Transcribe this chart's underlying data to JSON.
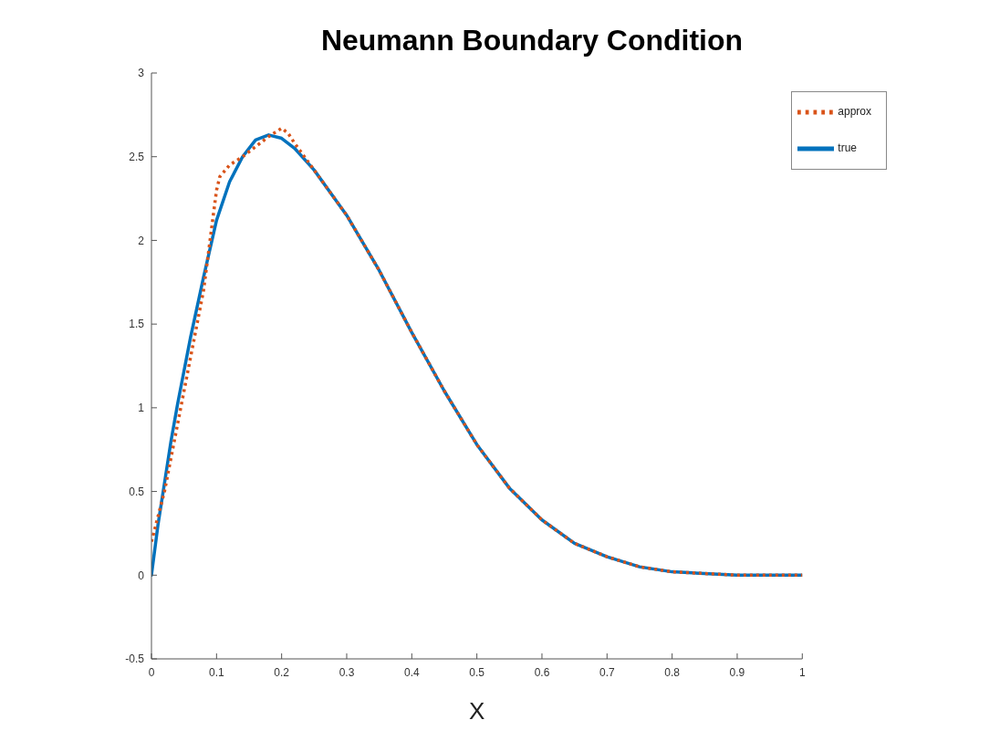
{
  "chart_data": {
    "type": "line",
    "title": "Neumann Boundary Condition",
    "xlabel": "X",
    "xlim": [
      0,
      1
    ],
    "xticks": [
      0,
      0.1,
      0.2,
      0.3,
      0.4,
      0.5,
      0.6,
      0.7,
      0.8,
      0.9,
      1
    ],
    "ylim": [
      -0.5,
      3
    ],
    "yticks": [
      -0.5,
      0,
      0.5,
      1,
      1.5,
      2,
      2.5,
      3
    ],
    "grid": false,
    "legend": "top right",
    "marker": "none",
    "series": [
      {
        "name": "true",
        "color": "#0072bd",
        "line_style": "solid",
        "x": [
          0,
          0.01,
          0.02,
          0.03,
          0.04,
          0.05,
          0.06,
          0.08,
          0.1,
          0.12,
          0.14,
          0.16,
          0.18,
          0.2,
          0.22,
          0.25,
          0.3,
          0.35,
          0.4,
          0.45,
          0.5,
          0.55,
          0.6,
          0.65,
          0.7,
          0.75,
          0.8,
          0.85,
          0.9,
          0.95,
          1
        ],
        "values": [
          0,
          0.3,
          0.55,
          0.8,
          1.02,
          1.22,
          1.42,
          1.78,
          2.12,
          2.35,
          2.5,
          2.6,
          2.63,
          2.61,
          2.55,
          2.42,
          2.15,
          1.82,
          1.45,
          1.1,
          0.78,
          0.52,
          0.33,
          0.19,
          0.11,
          0.05,
          0.02,
          0.01,
          0,
          0,
          0
        ]
      },
      {
        "name": "approx",
        "color": "#d95319",
        "line_style": "dotted",
        "x": [
          0,
          0.01,
          0.02,
          0.03,
          0.04,
          0.05,
          0.06,
          0.08,
          0.1,
          0.105,
          0.12,
          0.14,
          0.16,
          0.18,
          0.2,
          0.21,
          0.22,
          0.25,
          0.3,
          0.35,
          0.4,
          0.45,
          0.5,
          0.55,
          0.6,
          0.65,
          0.7,
          0.75,
          0.8,
          0.85,
          0.9,
          0.95,
          1
        ],
        "values": [
          0.2,
          0.35,
          0.5,
          0.7,
          0.9,
          1.1,
          1.3,
          1.7,
          2.3,
          2.38,
          2.45,
          2.5,
          2.56,
          2.62,
          2.67,
          2.64,
          2.58,
          2.42,
          2.15,
          1.82,
          1.45,
          1.1,
          0.78,
          0.52,
          0.33,
          0.19,
          0.11,
          0.05,
          0.02,
          0.01,
          0,
          0,
          0
        ]
      }
    ]
  }
}
